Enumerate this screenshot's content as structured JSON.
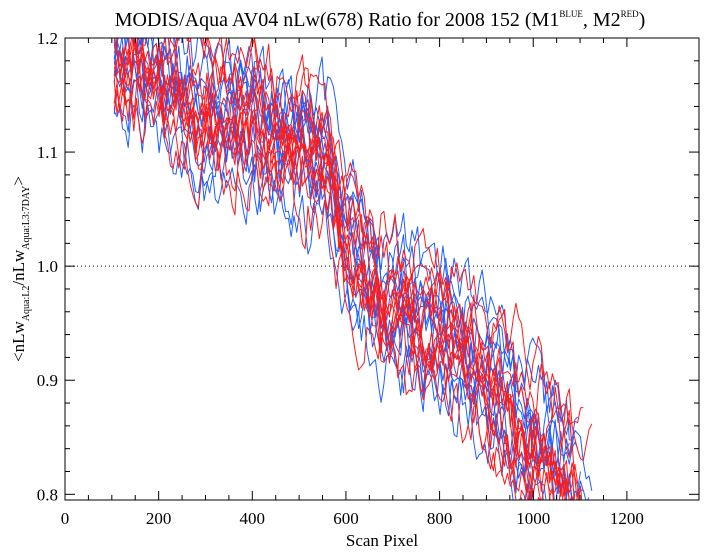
{
  "chart_data": {
    "type": "line",
    "title": {
      "main": "MODIS/Aqua AV04 nLw(678) Ratio for 2008 152 (M1",
      "sup1": "BLUE",
      "mid": ", M2",
      "sup2": "RED",
      "end": ")"
    },
    "xlabel": "Scan Pixel",
    "ylabel": {
      "p1": "<nLw",
      "sub1": "Aqua:L2",
      "p2": "/nLw",
      "sub2": "Aqua:L3:7DAY",
      "p3": ">"
    },
    "xlim": [
      0,
      1354
    ],
    "ylim": [
      0.795,
      1.2
    ],
    "xticks": [
      0,
      200,
      400,
      600,
      800,
      1000,
      1200
    ],
    "xtick_labels": [
      "0",
      "200",
      "400",
      "600",
      "800",
      "1000",
      "1200"
    ],
    "yticks": [
      0.8,
      0.9,
      1.0,
      1.1,
      1.2
    ],
    "ytick_labels": [
      "0.8",
      "0.9",
      "1.0",
      "1.1",
      "1.2"
    ],
    "reference_line": {
      "y": 1.0,
      "style": "dotted"
    },
    "grid": false,
    "legend": "none",
    "colors": {
      "M1": "#1f5fff",
      "M2": "#ff1a1a"
    },
    "trend": {
      "x": [
        110,
        200,
        300,
        400,
        500,
        560,
        600,
        700,
        800,
        900,
        1000,
        1100
      ],
      "y": [
        1.185,
        1.17,
        1.13,
        1.12,
        1.1,
        1.095,
        1.02,
        0.96,
        0.945,
        0.9,
        0.845,
        0.8
      ]
    },
    "series": [
      {
        "group": "M1",
        "offset": 0.03,
        "x_end": 1085
      },
      {
        "group": "M1",
        "offset": -0.05,
        "x_end": 1060
      },
      {
        "group": "M1",
        "offset": 0.01,
        "x_end": 1110
      },
      {
        "group": "M1",
        "offset": -0.02,
        "x_end": 1090
      },
      {
        "group": "M1",
        "offset": 0.05,
        "x_end": 1130
      },
      {
        "group": "M1",
        "offset": -0.035,
        "x_end": 1075
      },
      {
        "group": "M1",
        "offset": 0.02,
        "x_end": 1100
      },
      {
        "group": "M1",
        "offset": -0.01,
        "x_end": 1120
      },
      {
        "group": "M1",
        "offset": 0.065,
        "x_end": 1095
      },
      {
        "group": "M1",
        "offset": -0.065,
        "x_end": 1050
      },
      {
        "group": "M1",
        "offset": 0.0,
        "x_end": 1105
      },
      {
        "group": "M1",
        "offset": 0.04,
        "x_end": 1080
      },
      {
        "group": "M2",
        "offset": 0.025,
        "x_end": 1100
      },
      {
        "group": "M2",
        "offset": -0.04,
        "x_end": 1070
      },
      {
        "group": "M2",
        "offset": 0.0,
        "x_end": 1115
      },
      {
        "group": "M2",
        "offset": -0.015,
        "x_end": 1090
      },
      {
        "group": "M2",
        "offset": 0.055,
        "x_end": 1125
      },
      {
        "group": "M2",
        "offset": -0.03,
        "x_end": 1080
      },
      {
        "group": "M2",
        "offset": 0.015,
        "x_end": 1105
      },
      {
        "group": "M2",
        "offset": -0.005,
        "x_end": 1095
      },
      {
        "group": "M2",
        "offset": 0.07,
        "x_end": 1110
      },
      {
        "group": "M2",
        "offset": -0.055,
        "x_end": 1060
      },
      {
        "group": "M2",
        "offset": 0.035,
        "x_end": 1085
      },
      {
        "group": "M2",
        "offset": -0.025,
        "x_end": 1120
      }
    ]
  }
}
